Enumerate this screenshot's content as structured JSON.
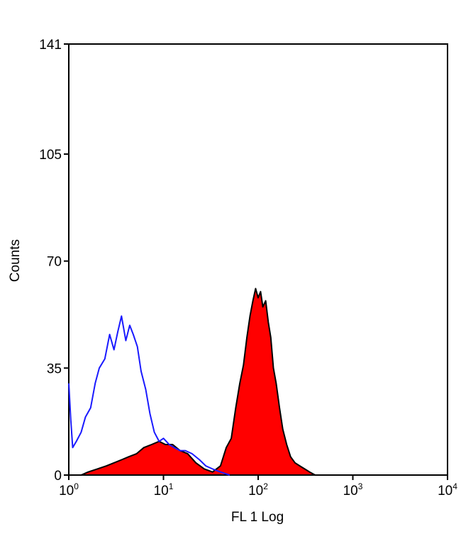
{
  "chart_data": {
    "type": "area",
    "title": "",
    "xlabel": "FL 1 Log",
    "ylabel": "Counts",
    "xscale": "log",
    "xlim": [
      1,
      10000
    ],
    "ylim": [
      0,
      141
    ],
    "yticks": [
      0,
      35,
      70,
      105,
      141
    ],
    "xticks": [
      {
        "value": 1,
        "base": "10",
        "exp": "0"
      },
      {
        "value": 10,
        "base": "10",
        "exp": "1"
      },
      {
        "value": 100,
        "base": "10",
        "exp": "2"
      },
      {
        "value": 1000,
        "base": "10",
        "exp": "3"
      },
      {
        "value": 10000,
        "base": "10",
        "exp": "4"
      }
    ],
    "grid": false,
    "series": [
      {
        "color": "#1a1aff",
        "style": "outline",
        "x": [
          1.0,
          1.05,
          1.1,
          1.2,
          1.35,
          1.5,
          1.7,
          1.9,
          2.1,
          2.4,
          2.7,
          3.0,
          3.3,
          3.6,
          4.0,
          4.4,
          4.8,
          5.3,
          5.8,
          6.5,
          7.2,
          8.0,
          9.0,
          10.0,
          11.5,
          13.0,
          15.0,
          17.0,
          20.0,
          24.0,
          28.0,
          33.0,
          40.0,
          50.0
        ],
        "y": [
          30,
          18,
          9,
          11,
          14,
          19,
          22,
          30,
          35,
          38,
          46,
          41,
          47,
          52,
          44,
          49,
          46,
          42,
          34,
          28,
          20,
          14,
          11,
          12,
          10,
          9,
          8,
          8,
          7,
          5,
          3,
          2,
          1,
          0
        ]
      },
      {
        "color": "#ff0000",
        "edge": "#000000",
        "style": "filled",
        "x": [
          1.35,
          1.6,
          2.0,
          2.5,
          3.0,
          3.6,
          4.3,
          5.2,
          6.2,
          7.5,
          9.0,
          10.5,
          12.5,
          15.0,
          18.0,
          22.0,
          27.0,
          33.0,
          40.0,
          46.0,
          52.0,
          58.0,
          64.0,
          70.0,
          76.0,
          82.0,
          88.0,
          94.0,
          100.0,
          106.0,
          112.0,
          120.0,
          128.0,
          136.0,
          145.0,
          155.0,
          168.0,
          182.0,
          200.0,
          220.0,
          245.0,
          275.0,
          310.0,
          350.0,
          400.0
        ],
        "y": [
          0,
          1,
          2,
          3,
          4,
          5,
          6,
          7,
          9,
          10,
          11,
          10,
          10,
          8,
          7,
          4,
          2,
          1,
          3,
          9,
          12,
          22,
          30,
          36,
          45,
          52,
          57,
          61,
          58,
          60,
          55,
          57,
          50,
          45,
          35,
          30,
          22,
          15,
          10,
          6,
          4,
          3,
          2,
          1,
          0
        ]
      }
    ]
  }
}
